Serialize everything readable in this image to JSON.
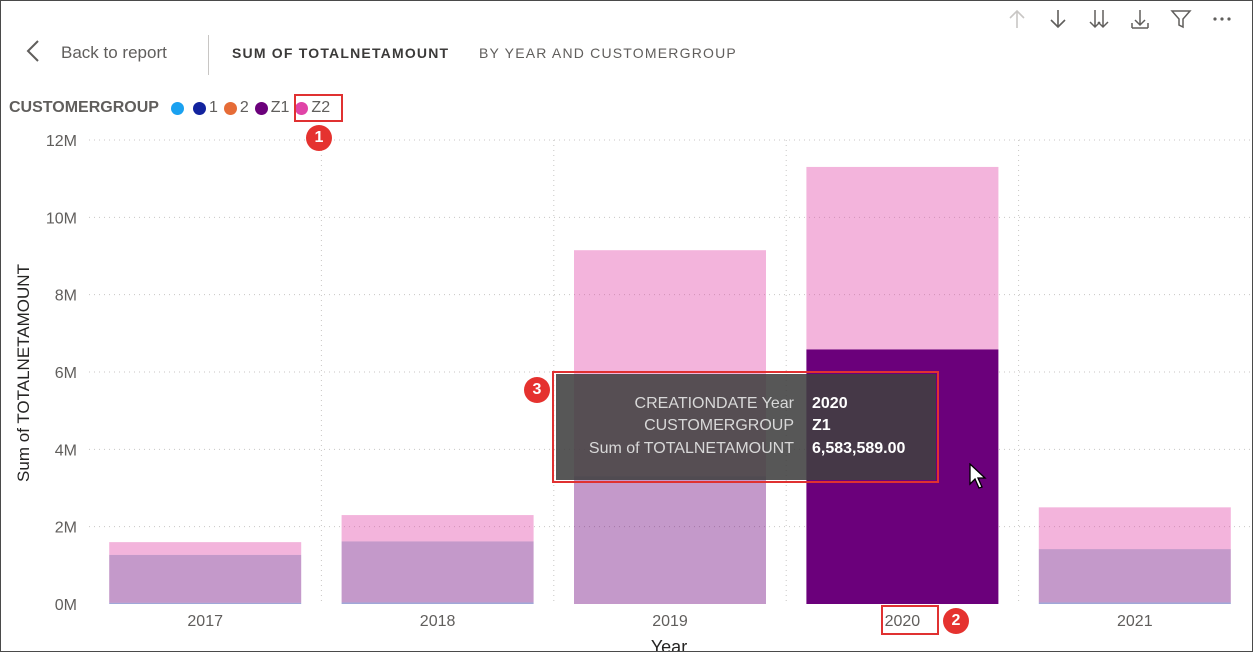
{
  "header": {
    "back_label": "Back to report",
    "title_measure": "SUM OF TOTALNETAMOUNT",
    "title_dims": "BY YEAR AND CUSTOMERGROUP"
  },
  "toolbar": {
    "icons": [
      "drill-up-icon",
      "drill-down-icon",
      "expand-next-level-icon",
      "expand-hierarchy-icon",
      "filter-icon",
      "more-options-icon"
    ]
  },
  "legend": {
    "title": "CUSTOMERGROUP",
    "items": [
      {
        "label": "",
        "color": "#1aa1f0"
      },
      {
        "label": "1",
        "color": "#12239e"
      },
      {
        "label": "2",
        "color": "#e66c37"
      },
      {
        "label": "Z1",
        "color": "#6b007b"
      },
      {
        "label": "Z2",
        "color": "#e044a7"
      }
    ]
  },
  "annotations": {
    "badge1": "1",
    "badge2": "2",
    "badge3": "3"
  },
  "tooltip": {
    "rows": [
      {
        "key": "CREATIONDATE Year",
        "value": "2020"
      },
      {
        "key": "CUSTOMERGROUP",
        "value": "Z1"
      },
      {
        "key": "Sum of TOTALNETAMOUNT",
        "value": "6,583,589.00"
      }
    ]
  },
  "chart_data": {
    "type": "bar",
    "stacked": true,
    "categories": [
      "2017",
      "2018",
      "2019",
      "2020",
      "2021"
    ],
    "xlabel": "Year",
    "ylabel": "Sum of TOTALNETAMOUNT",
    "ylim": [
      0,
      12000000
    ],
    "yticks": [
      "0M",
      "2M",
      "4M",
      "6M",
      "8M",
      "10M",
      "12M"
    ],
    "grid": true,
    "highlighted": {
      "category": "2020",
      "series": "Z1"
    },
    "series": [
      {
        "name": "1",
        "color": "#12239e",
        "values": [
          30000,
          40000,
          0,
          0,
          40000
        ]
      },
      {
        "name": "Z1",
        "color": "#6b007b",
        "values": [
          1240000,
          1580000,
          3300000,
          6583589,
          1380000
        ]
      },
      {
        "name": "Z2",
        "color": "#e044a7",
        "values": [
          330000,
          680000,
          5850000,
          4720000,
          1080000
        ]
      }
    ]
  }
}
